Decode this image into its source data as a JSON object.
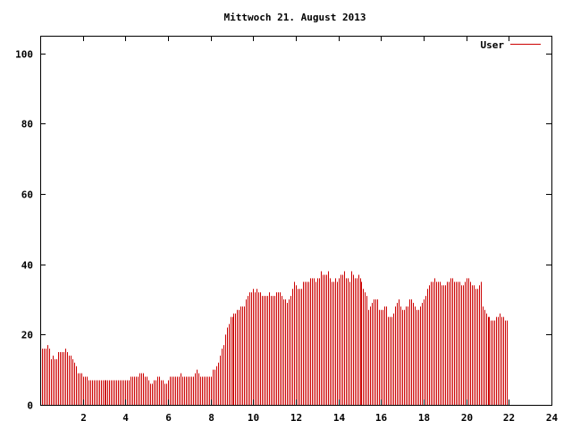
{
  "chart_data": {
    "type": "bar",
    "title": "Mittwoch 21. August 2013",
    "xlabel": "",
    "ylabel": "",
    "xlim": [
      0,
      24
    ],
    "ylim": [
      0,
      105
    ],
    "x_ticks": [
      2,
      4,
      6,
      8,
      10,
      12,
      14,
      16,
      18,
      20,
      22,
      24
    ],
    "y_ticks": [
      0,
      20,
      40,
      60,
      80,
      100
    ],
    "grid": false,
    "legend_position": "top-right",
    "colors": {
      "series": "#cc0000",
      "axis": "#000000",
      "background": "#ffffff"
    },
    "interval_minutes": 5,
    "series": [
      {
        "name": "User",
        "values": [
          16,
          16,
          16,
          16,
          17,
          16,
          13,
          14,
          13,
          13,
          15,
          15,
          15,
          15,
          16,
          15,
          14,
          14,
          13,
          12,
          11,
          9,
          9,
          9,
          8,
          8,
          8,
          7,
          7,
          7,
          7,
          7,
          7,
          7,
          7,
          7,
          7,
          7,
          7,
          7,
          7,
          7,
          7,
          7,
          7,
          7,
          7,
          7,
          7,
          7,
          7,
          8,
          8,
          8,
          8,
          8,
          9,
          9,
          9,
          8,
          8,
          7,
          6,
          6,
          7,
          7,
          8,
          8,
          7,
          7,
          6,
          6,
          7,
          8,
          8,
          8,
          8,
          8,
          8,
          9,
          8,
          8,
          8,
          8,
          8,
          8,
          8,
          9,
          10,
          9,
          8,
          8,
          8,
          8,
          8,
          8,
          8,
          10,
          10,
          11,
          12,
          14,
          16,
          17,
          20,
          22,
          23,
          25,
          25,
          26,
          26,
          27,
          27,
          28,
          28,
          28,
          30,
          31,
          32,
          32,
          33,
          32,
          33,
          32,
          32,
          31,
          31,
          31,
          31,
          32,
          31,
          31,
          31,
          32,
          32,
          32,
          31,
          30,
          30,
          29,
          30,
          31,
          33,
          35,
          34,
          33,
          33,
          33,
          35,
          35,
          35,
          35,
          36,
          36,
          36,
          35,
          36,
          36,
          38,
          37,
          37,
          37,
          38,
          36,
          35,
          35,
          36,
          35,
          36,
          37,
          37,
          38,
          36,
          36,
          35,
          38,
          37,
          36,
          36,
          37,
          36,
          35,
          33,
          32,
          31,
          27,
          28,
          29,
          30,
          30,
          30,
          27,
          27,
          27,
          28,
          28,
          25,
          25,
          25,
          26,
          28,
          29,
          30,
          28,
          27,
          27,
          28,
          28,
          30,
          30,
          29,
          28,
          27,
          27,
          28,
          29,
          30,
          31,
          33,
          34,
          35,
          35,
          36,
          35,
          35,
          35,
          34,
          34,
          34,
          35,
          35,
          36,
          36,
          35,
          35,
          35,
          35,
          34,
          34,
          35,
          36,
          36,
          35,
          34,
          34,
          33,
          33,
          34,
          35,
          28,
          27,
          26,
          25,
          25,
          24,
          24,
          24,
          25,
          25,
          26,
          25,
          25,
          24,
          24
        ]
      }
    ]
  }
}
